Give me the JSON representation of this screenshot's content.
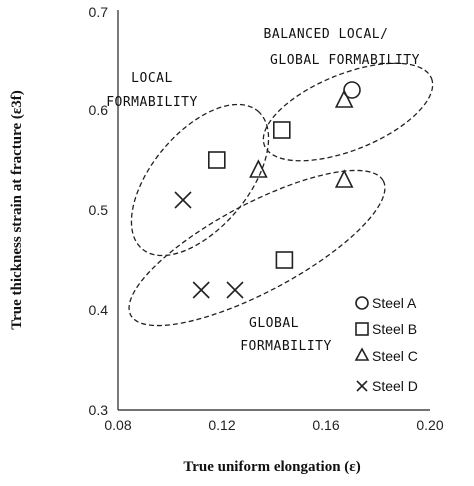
{
  "chart_data": {
    "type": "scatter",
    "xlabel": "True uniform elongation (ε)",
    "ylabel": "True thickness strain at fracture (ε3f)",
    "xlim": [
      0.08,
      0.2
    ],
    "ylim": [
      0.3,
      0.7
    ],
    "x_ticks": [
      "0.08",
      "0.12",
      "0.16",
      "0.20"
    ],
    "y_ticks": [
      "0.3",
      "0.4",
      "0.5",
      "0.6",
      "0.7"
    ],
    "grid": false,
    "legend_position": "bottom-right",
    "series": [
      {
        "name": "Steel A",
        "marker": "circle",
        "points": [
          [
            0.17,
            0.62
          ]
        ]
      },
      {
        "name": "Steel B",
        "marker": "square",
        "points": [
          [
            0.118,
            0.55
          ],
          [
            0.143,
            0.58
          ],
          [
            0.144,
            0.45
          ]
        ]
      },
      {
        "name": "Steel C",
        "marker": "triangle",
        "points": [
          [
            0.134,
            0.54
          ],
          [
            0.167,
            0.61
          ],
          [
            0.167,
            0.53
          ]
        ]
      },
      {
        "name": "Steel D",
        "marker": "cross",
        "points": [
          [
            0.105,
            0.51
          ],
          [
            0.112,
            0.42
          ],
          [
            0.125,
            0.42
          ]
        ]
      }
    ],
    "annotations": [
      {
        "lines": [
          "BALANCED LOCAL/",
          "GLOBAL FORMABILITY"
        ]
      },
      {
        "lines": [
          "LOCAL",
          "FORMABILITY"
        ]
      },
      {
        "lines": [
          "GLOBAL",
          "FORMABILITY"
        ]
      }
    ]
  }
}
